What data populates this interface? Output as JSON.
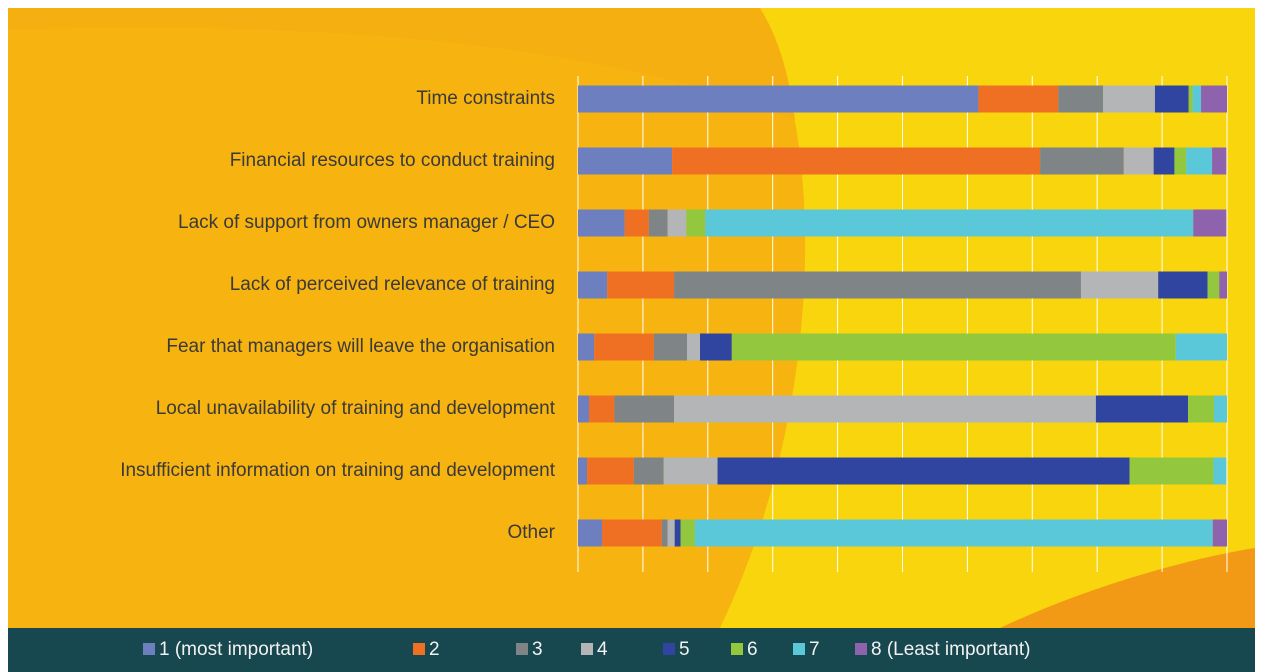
{
  "chart_data": {
    "type": "stacked_bar_horizontal",
    "categories": [
      "Time constraints",
      "Financial resources to conduct training",
      "Lack of support from owners manager / CEO",
      "Lack of perceived relevance of training",
      "Fear that managers will leave the organisation",
      "Local unavailability of training and development",
      "Insufficient information on training and development",
      "Other"
    ],
    "series": [
      {
        "name": "1 (most important)",
        "color": "#6e7fc0",
        "values": [
          61.7,
          14.5,
          7.2,
          4.5,
          2.5,
          1.7,
          1.4,
          3.7
        ]
      },
      {
        "name": "2",
        "color": "#f07023",
        "values": [
          12.3,
          56.7,
          3.7,
          10.3,
          9.2,
          3.9,
          7.2,
          9.2
        ]
      },
      {
        "name": "3",
        "color": "#7f8587",
        "values": [
          6.9,
          12.9,
          2.9,
          62.7,
          5.1,
          9.2,
          4.6,
          0.9
        ]
      },
      {
        "name": "4",
        "color": "#b3b5b6",
        "values": [
          8.0,
          4.6,
          2.9,
          11.9,
          2.0,
          65.0,
          8.3,
          1.1
        ]
      },
      {
        "name": "5",
        "color": "#2f45a0",
        "values": [
          5.2,
          3.2,
          0,
          7.6,
          4.9,
          14.2,
          63.5,
          0.9
        ]
      },
      {
        "name": "6",
        "color": "#93c83e",
        "values": [
          0.6,
          1.8,
          2.9,
          1.8,
          68.4,
          4.0,
          12.9,
          2.2
        ]
      },
      {
        "name": "7",
        "color": "#5ac8d8",
        "values": [
          1.3,
          4.0,
          75.2,
          0,
          7.9,
          2.0,
          2.0,
          79.8
        ]
      },
      {
        "name": "8 (Least important)",
        "color": "#8e62ad",
        "values": [
          4.0,
          2.2,
          5.1,
          1.2,
          0,
          0,
          0,
          2.2
        ]
      }
    ],
    "xlim": [
      0,
      100
    ],
    "xticks": [
      0,
      10,
      20,
      30,
      40,
      50,
      60,
      70,
      80,
      90,
      100
    ],
    "grid": true,
    "legend": "bottom"
  }
}
